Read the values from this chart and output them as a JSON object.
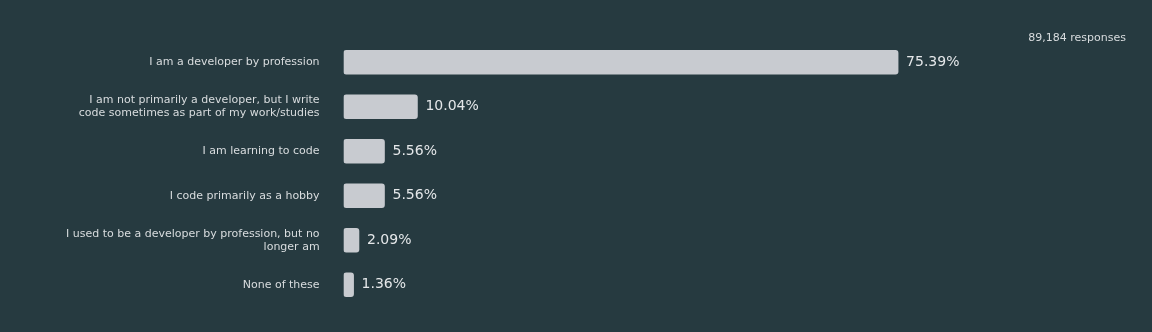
{
  "chart_data": {
    "type": "bar",
    "orientation": "horizontal",
    "categories": [
      "I am a developer by profession",
      "I am not primarily a developer, but I write code sometimes as part of my work/studies",
      "I am learning to code",
      "I code primarily as a hobby",
      "I used to be a developer by profession, but no longer am",
      "None of these"
    ],
    "values": [
      75.39,
      10.04,
      5.56,
      5.56,
      2.09,
      1.36
    ],
    "value_labels": [
      "75.39%",
      "10.04%",
      "5.56%",
      "5.56%",
      "2.09%",
      "1.36%"
    ],
    "color": "#c8cbd0",
    "legend": false,
    "annotations": [
      "89,184 responses"
    ]
  }
}
